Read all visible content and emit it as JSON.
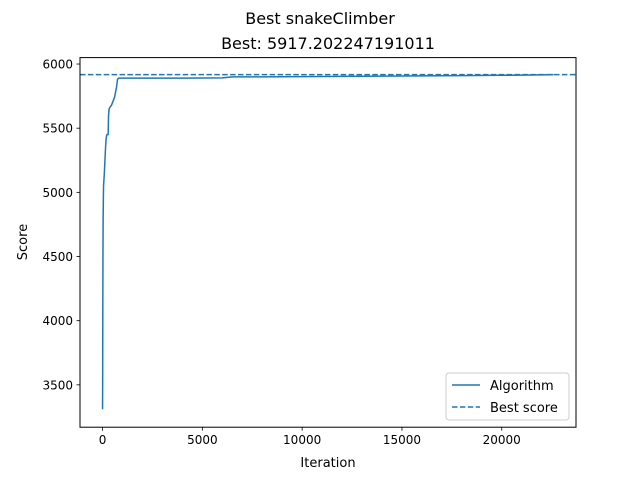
{
  "chart_data": {
    "type": "line",
    "suptitle": "Best snakeClimber",
    "title": "Best: 5917.202247191011",
    "xlabel": "Iteration",
    "ylabel": "Score",
    "xlim": [
      -1130,
      23720
    ],
    "ylim": [
      3170,
      6050
    ],
    "xticks": [
      0,
      5000,
      10000,
      15000,
      20000
    ],
    "yticks": [
      3500,
      4000,
      4500,
      5000,
      5500,
      6000
    ],
    "grid": false,
    "legend_position": "lower-right",
    "series": [
      {
        "name": "Algorithm",
        "style": "solid",
        "color": "#1f77b4",
        "x": [
          0,
          5,
          10,
          15,
          20,
          30,
          40,
          50,
          70,
          90,
          120,
          150,
          180,
          200,
          220,
          240,
          260,
          280,
          300,
          330,
          360,
          400,
          450,
          500,
          550,
          600,
          650,
          700,
          750,
          800,
          1000,
          2000,
          4000,
          6000,
          6500,
          8000,
          10000,
          12000,
          14000,
          16000,
          18000,
          20000,
          22000,
          22600
        ],
        "y": [
          3310,
          3500,
          3900,
          4200,
          4500,
          4800,
          4950,
          5050,
          5100,
          5150,
          5250,
          5350,
          5420,
          5440,
          5450,
          5450,
          5450,
          5450,
          5600,
          5650,
          5660,
          5670,
          5680,
          5700,
          5720,
          5740,
          5780,
          5820,
          5880,
          5890,
          5890,
          5890,
          5890,
          5892,
          5900,
          5900,
          5902,
          5904,
          5906,
          5908,
          5910,
          5912,
          5915,
          5917
        ]
      },
      {
        "name": "Best score",
        "style": "dashed",
        "color": "#1f77b4",
        "hline": 5917.202247191011
      }
    ]
  }
}
